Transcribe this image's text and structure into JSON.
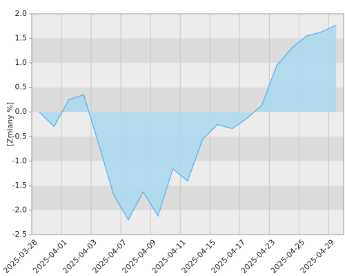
{
  "chart_data": {
    "type": "area",
    "y_label": "[Zmiany %]",
    "xtick_labels": [
      "2025-03-28",
      "2025-04-01",
      "2025-04-03",
      "2025-04-07",
      "2025-04-09",
      "2025-04-11",
      "2025-04-15",
      "2025-04-17",
      "2025-04-23",
      "2025-04-25",
      "2025-04-29"
    ],
    "values": [
      0.0,
      -0.3,
      0.25,
      0.35,
      -0.65,
      -1.68,
      -2.2,
      -1.63,
      -2.12,
      -1.16,
      -1.41,
      -0.56,
      -0.26,
      -0.34,
      -0.13,
      0.14,
      0.95,
      1.3,
      1.55,
      1.63,
      1.77
    ],
    "color": "#5aaee8",
    "fill": "#a9d8ee",
    "ylim": [
      -2.5,
      2.0
    ],
    "yticks": [
      {
        "value": 2,
        "label": "2.0"
      },
      1.5,
      {
        "value": 1,
        "label": "1.0"
      },
      0.5,
      {
        "value": 0,
        "label": "0.0"
      },
      -0.5,
      {
        "value": -1,
        "label": "-1.0"
      },
      -1.5,
      {
        "value": -2,
        "label": "-2.0"
      },
      -2.5
    ],
    "grid": true
  }
}
